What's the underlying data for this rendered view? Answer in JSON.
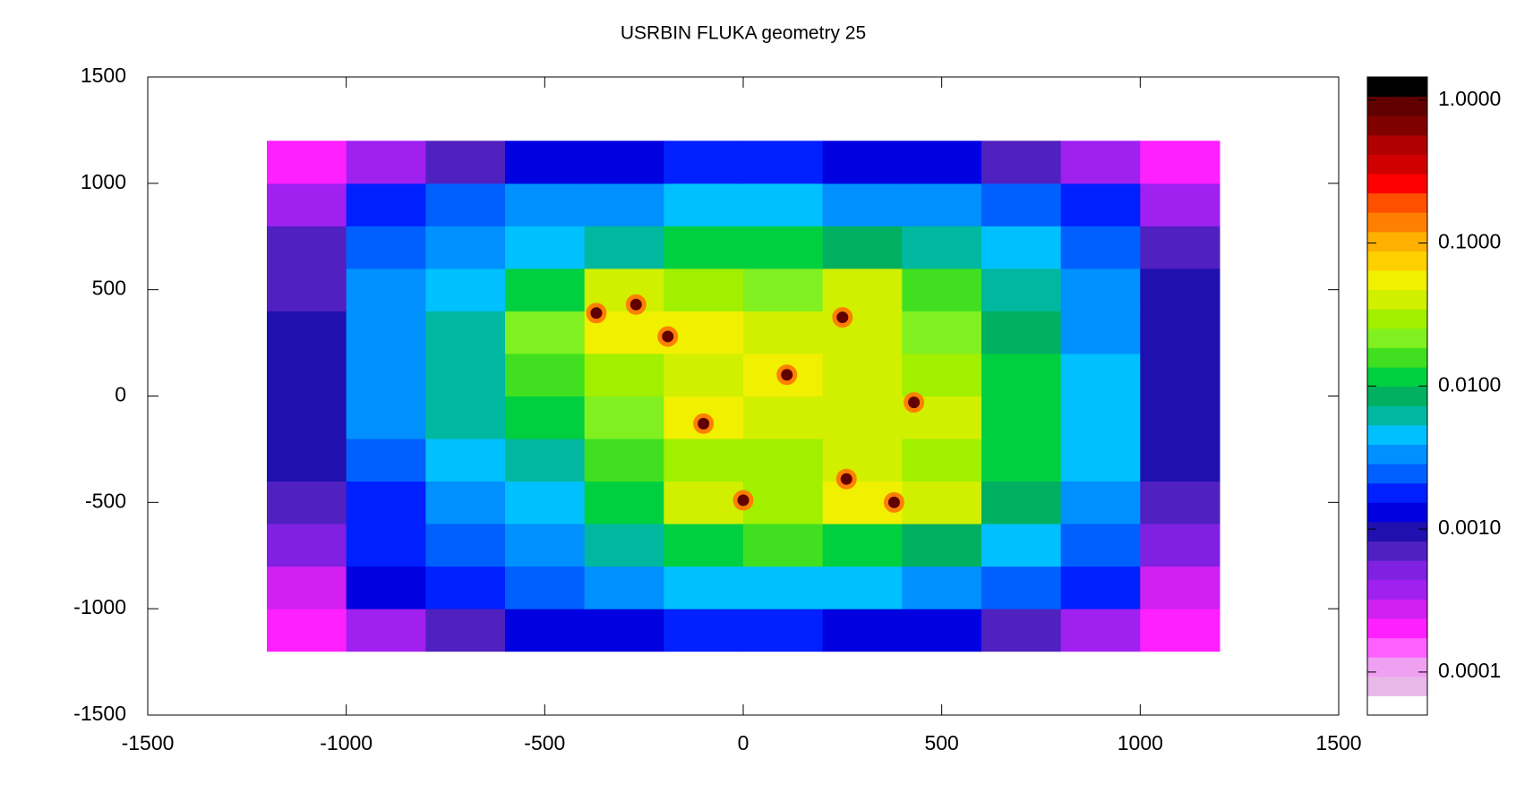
{
  "chart_data": {
    "type": "heatmap",
    "title": "USRBIN FLUKA geometry 25",
    "xlim": [
      -1500,
      1500
    ],
    "ylim": [
      -1500,
      1500
    ],
    "xticks": [
      -1500,
      -1000,
      -500,
      0,
      500,
      1000,
      1500
    ],
    "yticks": [
      -1500,
      -1000,
      -500,
      0,
      500,
      1000,
      1500
    ],
    "xbins": [
      -1200,
      -1000,
      -800,
      -600,
      -400,
      -200,
      0,
      200,
      400,
      600,
      800,
      1000,
      1200
    ],
    "ybins": [
      -1200,
      -1000,
      -800,
      -600,
      -400,
      -200,
      0,
      200,
      400,
      600,
      800,
      1000,
      1200
    ],
    "values": [
      [
        0.0002,
        0.0004,
        0.0008,
        0.0012,
        0.0015,
        0.0018,
        0.0018,
        0.0015,
        0.0012,
        0.0008,
        0.0004,
        0.0002
      ],
      [
        0.0003,
        0.0015,
        0.002,
        0.0025,
        0.0035,
        0.005,
        0.005,
        0.004,
        0.003,
        0.0025,
        0.0018,
        0.0003
      ],
      [
        0.0005,
        0.0018,
        0.0025,
        0.0035,
        0.006,
        0.012,
        0.015,
        0.012,
        0.008,
        0.004,
        0.0025,
        0.0006
      ],
      [
        0.0007,
        0.002,
        0.003,
        0.005,
        0.012,
        0.04,
        0.03,
        0.05,
        0.04,
        0.008,
        0.003,
        0.0008
      ],
      [
        0.0009,
        0.0025,
        0.004,
        0.007,
        0.015,
        0.03,
        0.03,
        0.04,
        0.03,
        0.01,
        0.004,
        0.001
      ],
      [
        0.001,
        0.003,
        0.006,
        0.01,
        0.025,
        0.05,
        0.04,
        0.035,
        0.04,
        0.012,
        0.0045,
        0.0011
      ],
      [
        0.001,
        0.0035,
        0.007,
        0.015,
        0.03,
        0.04,
        0.05,
        0.04,
        0.03,
        0.012,
        0.0045,
        0.0011
      ],
      [
        0.0009,
        0.0035,
        0.007,
        0.02,
        0.06,
        0.05,
        0.035,
        0.04,
        0.02,
        0.008,
        0.0035,
        0.001
      ],
      [
        0.0008,
        0.003,
        0.005,
        0.012,
        0.04,
        0.03,
        0.025,
        0.035,
        0.015,
        0.006,
        0.003,
        0.0009
      ],
      [
        0.0007,
        0.0025,
        0.0035,
        0.005,
        0.007,
        0.01,
        0.01,
        0.008,
        0.006,
        0.004,
        0.0025,
        0.0007
      ],
      [
        0.0004,
        0.002,
        0.0025,
        0.003,
        0.0035,
        0.004,
        0.004,
        0.0035,
        0.003,
        0.0025,
        0.002,
        0.0004
      ],
      [
        0.0002,
        0.0004,
        0.0008,
        0.0012,
        0.0015,
        0.0018,
        0.0018,
        0.0015,
        0.0012,
        0.0008,
        0.0004,
        0.0002
      ]
    ],
    "peaks": {
      "x": [
        -370,
        -270,
        -190,
        250,
        110,
        430,
        -100,
        260,
        0,
        380
      ],
      "y": [
        390,
        430,
        280,
        370,
        100,
        -30,
        -130,
        -390,
        -490,
        -500
      ],
      "values": [
        0.8,
        0.8,
        0.8,
        0.8,
        0.8,
        0.8,
        0.8,
        0.8,
        0.8,
        0.8
      ]
    },
    "clim": [
      5e-05,
      1.45
    ],
    "color_scale": "log",
    "cbticks": [
      {
        "value": 1,
        "label": "1.0000"
      },
      {
        "value": 0.1,
        "label": "0.1000"
      },
      {
        "value": 0.01,
        "label": "0.0100"
      },
      {
        "value": 0.001,
        "label": "0.0010"
      },
      {
        "value": 0.0001,
        "label": "0.0001"
      }
    ],
    "colormap": [
      "#ffffff",
      "#e8b8e8",
      "#f0a0f0",
      "#ff60ff",
      "#ff20ff",
      "#d020f0",
      "#a020f0",
      "#8020e0",
      "#5020c0",
      "#2010b0",
      "#0000e0",
      "#0020ff",
      "#0060ff",
      "#0090ff",
      "#00c0ff",
      "#00b8a0",
      "#00b060",
      "#00d040",
      "#40e020",
      "#80f020",
      "#a0f000",
      "#d0f000",
      "#f0f000",
      "#ffd000",
      "#ffb000",
      "#ff8000",
      "#ff5000",
      "#ff0000",
      "#d00000",
      "#b00000",
      "#800000",
      "#600000",
      "#000000"
    ]
  }
}
